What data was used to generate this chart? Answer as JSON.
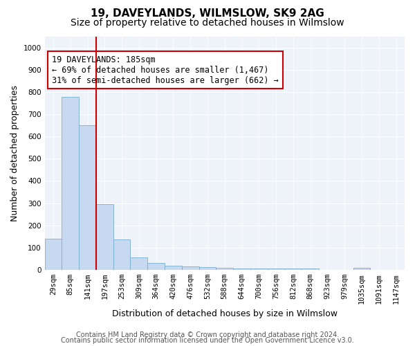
{
  "title": "19, DAVEYLANDS, WILMSLOW, SK9 2AG",
  "subtitle": "Size of property relative to detached houses in Wilmslow",
  "xlabel": "Distribution of detached houses by size in Wilmslow",
  "ylabel": "Number of detached properties",
  "categories": [
    "29sqm",
    "85sqm",
    "141sqm",
    "197sqm",
    "253sqm",
    "309sqm",
    "364sqm",
    "420sqm",
    "476sqm",
    "532sqm",
    "588sqm",
    "644sqm",
    "700sqm",
    "756sqm",
    "812sqm",
    "868sqm",
    "923sqm",
    "979sqm",
    "1035sqm",
    "1091sqm",
    "1147sqm"
  ],
  "values": [
    140,
    778,
    650,
    295,
    138,
    57,
    30,
    20,
    17,
    12,
    8,
    7,
    7,
    7,
    7,
    7,
    0,
    0,
    9,
    0,
    0
  ],
  "bar_color": "#c6d9f0",
  "bar_edge_color": "#7aadce",
  "vline_x_index": 2,
  "vline_color": "#cc0000",
  "annotation_line1": "19 DAVEYLANDS: 185sqm",
  "annotation_line2": "← 69% of detached houses are smaller (1,467)",
  "annotation_line3": "31% of semi-detached houses are larger (662) →",
  "annotation_box_color": "#ffffff",
  "annotation_box_edge": "#cc0000",
  "ylim": [
    0,
    1050
  ],
  "yticks": [
    0,
    100,
    200,
    300,
    400,
    500,
    600,
    700,
    800,
    900,
    1000
  ],
  "bg_color": "#eef2f9",
  "footer_line1": "Contains HM Land Registry data © Crown copyright and database right 2024.",
  "footer_line2": "Contains public sector information licensed under the Open Government Licence v3.0.",
  "title_fontsize": 11,
  "subtitle_fontsize": 10,
  "axis_label_fontsize": 9,
  "tick_fontsize": 7.5,
  "annotation_fontsize": 8.5,
  "footer_fontsize": 7
}
